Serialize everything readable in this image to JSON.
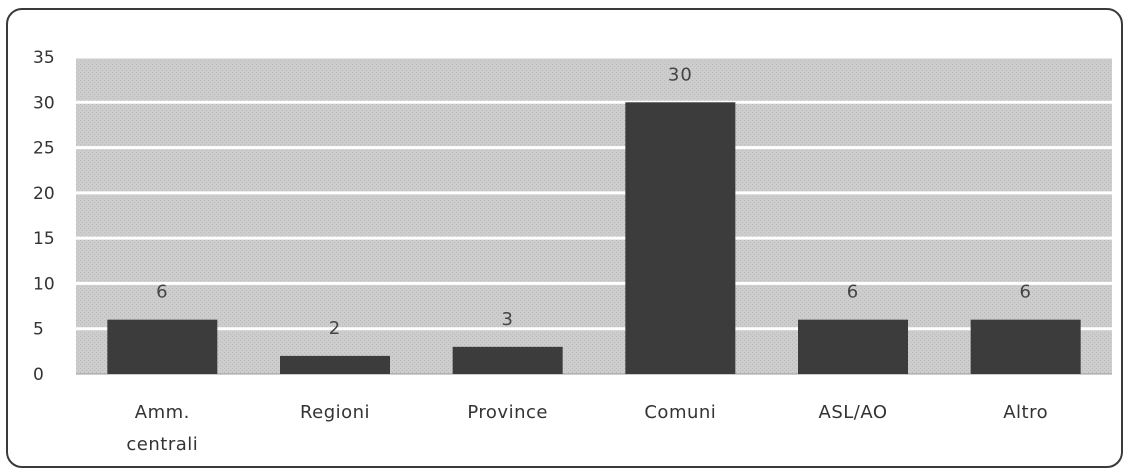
{
  "chart_data": {
    "type": "bar",
    "categories": [
      "Amm. centrali",
      "Regioni",
      "Province",
      "Comuni",
      "ASL/AO",
      "Altro"
    ],
    "category_lines": [
      [
        "Amm.",
        "centrali"
      ],
      [
        "Regioni"
      ],
      [
        "Province"
      ],
      [
        "Comuni"
      ],
      [
        "ASL/AO"
      ],
      [
        "Altro"
      ]
    ],
    "values": [
      6,
      2,
      3,
      30,
      6,
      6
    ],
    "data_labels": [
      "6",
      "2",
      "3",
      "30",
      "6",
      "6"
    ],
    "title": "",
    "xlabel": "",
    "ylabel": "",
    "ylim": [
      0,
      35
    ],
    "yticks": [
      0,
      5,
      10,
      15,
      20,
      25,
      30,
      35
    ],
    "grid": true,
    "legend": "none",
    "colors": {
      "bar": "#3c3c3c",
      "plot_background": "#c9c9c9",
      "gridline": "#ffffff",
      "text": "#333333"
    }
  }
}
